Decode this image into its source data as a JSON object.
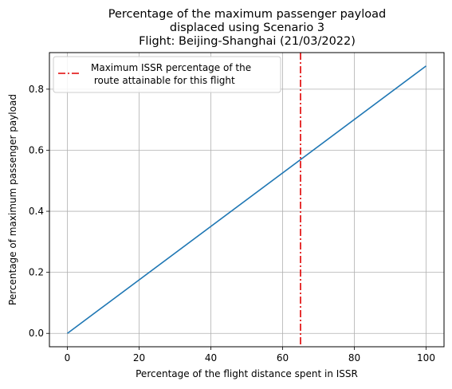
{
  "chart_data": {
    "type": "line",
    "title_lines": [
      "Percentage of the maximum passenger payload",
      "displaced using Scenario 3",
      "Flight: Beijing-Shanghai (21/03/2022)"
    ],
    "xlabel": "Percentage of the flight distance spent in ISSR",
    "ylabel": "Percentage of maximum passenger payload",
    "xlim": [
      -5,
      105
    ],
    "ylim": [
      -0.0438,
      0.9198
    ],
    "xticks": [
      0,
      20,
      40,
      60,
      80,
      100
    ],
    "xtick_labels": [
      "0",
      "20",
      "40",
      "60",
      "80",
      "100"
    ],
    "yticks": [
      0.0,
      0.2,
      0.4,
      0.6,
      0.8
    ],
    "ytick_labels": [
      "0.0",
      "0.2",
      "0.4",
      "0.6",
      "0.8"
    ],
    "grid": true,
    "series": [
      {
        "x": [
          0,
          100
        ],
        "y": [
          0.0,
          0.876
        ],
        "color": "#1f77b4",
        "style": "solid"
      }
    ],
    "vlines": [
      {
        "x": 65,
        "color": "#e00000",
        "style": "dashdot",
        "label_lines": [
          "Maximum ISSR percentage of the",
          " route attainable for this flight"
        ]
      }
    ],
    "legend": {
      "placement": "upper-left"
    }
  }
}
